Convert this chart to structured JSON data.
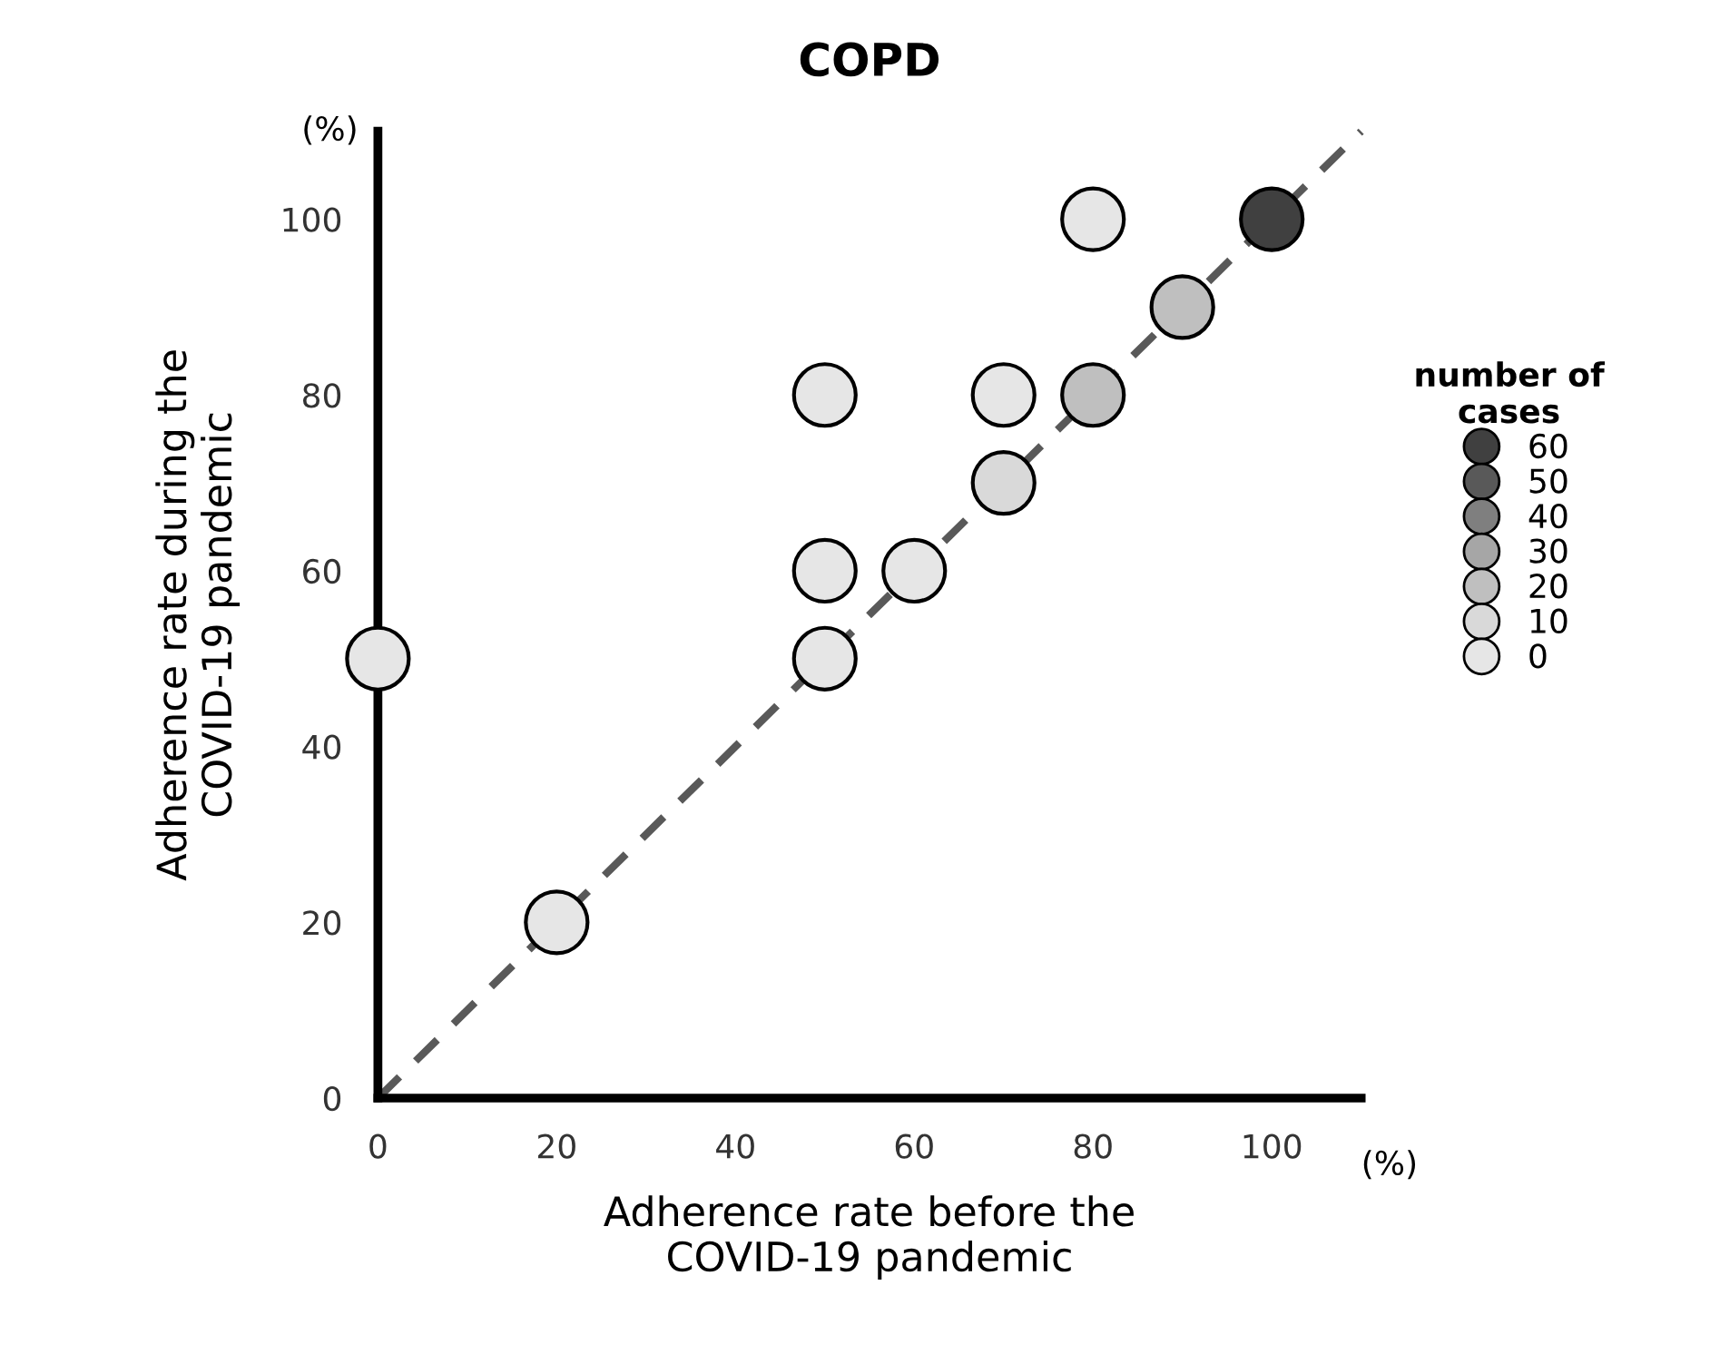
{
  "chart_data": {
    "type": "scatter",
    "title": "COPD",
    "xlabel": "Adherence rate before the\nCOVID-19 pandemic",
    "ylabel": "Adherence rate during the\nCOVID-19 pandemic",
    "legend_title": "number of\ncases",
    "annotations": [
      "(%)",
      "(%)"
    ],
    "xlim": [
      0,
      110
    ],
    "ylim": [
      0,
      110
    ],
    "xticks": [
      0,
      20,
      40,
      60,
      80,
      100
    ],
    "yticks": [
      0,
      20,
      40,
      60,
      80,
      100
    ],
    "grid": false,
    "legend": "right",
    "marker": "circle",
    "series": [
      {
        "name": "60",
        "color": "#404040",
        "x": [
          100
        ],
        "values": [
          100
        ]
      },
      {
        "name": "50",
        "color": "#595959"
      },
      {
        "name": "40",
        "color": "#7f7f7f"
      },
      {
        "name": "30",
        "color": "#a6a6a6"
      },
      {
        "name": "20",
        "color": "#bfbfbf",
        "x": [
          80,
          90
        ],
        "values": [
          80,
          90
        ]
      },
      {
        "name": "10",
        "color": "#d9d9d9",
        "x": [
          70
        ],
        "values": [
          70
        ]
      },
      {
        "name": "0",
        "color": "#e6e6e6",
        "x": [
          0,
          20,
          50,
          50,
          50,
          60,
          70,
          80
        ],
        "values": [
          50,
          20,
          50,
          60,
          80,
          60,
          80,
          100
        ]
      },
      {
        "type": "line",
        "color": "#595959",
        "line_style": "dashed",
        "marker": "none",
        "x": [
          0,
          110
        ],
        "values": [
          0,
          110
        ]
      }
    ]
  }
}
